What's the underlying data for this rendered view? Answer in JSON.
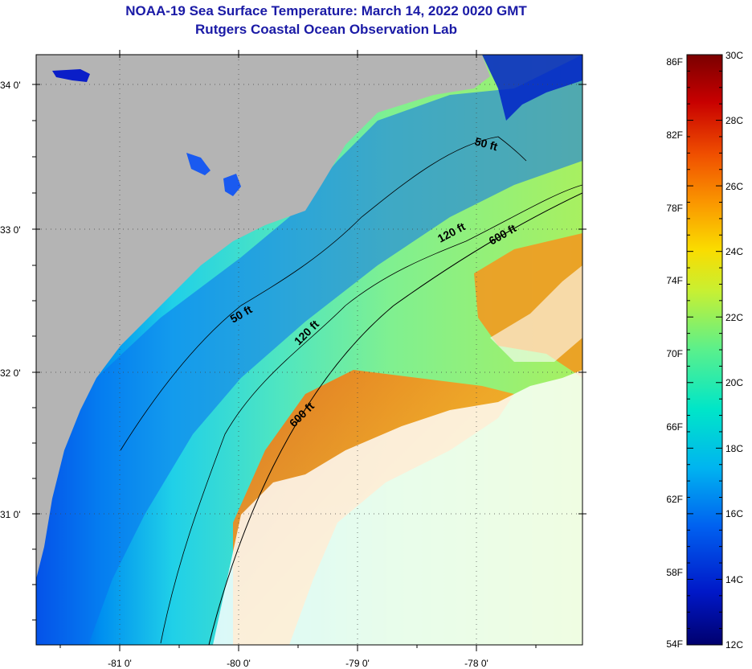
{
  "title": "NOAA-19 Sea Surface Temperature:  March 14, 2022 0020 GMT",
  "subtitle": "Rutgers Coastal Ocean Observation Lab",
  "axes": {
    "lat_labels": [
      "34 0'",
      "33 0'",
      "32 0'",
      "31 0'"
    ],
    "lon_labels": [
      "-81 0'",
      "-80 0'",
      "-79 0'",
      "-78 0'"
    ]
  },
  "contours": {
    "c50a": "50 ft",
    "c50b": "50 ft",
    "c120a": "120 ft",
    "c120b": "120 ft",
    "c600a": "600 ft",
    "c600b": "600 ft"
  },
  "colorbar": {
    "fahrenheit": [
      "86F",
      "82F",
      "78F",
      "74F",
      "70F",
      "66F",
      "62F",
      "58F",
      "54F"
    ],
    "celsius": [
      "30C",
      "28C",
      "26C",
      "24C",
      "22C",
      "20C",
      "18C",
      "16C",
      "14C",
      "12C"
    ],
    "range_c": [
      12,
      30
    ],
    "colors": [
      "#00006e",
      "#0018c8",
      "#0060f0",
      "#00b4f0",
      "#00e6c8",
      "#5af08c",
      "#c8f032",
      "#fadc00",
      "#fa9600",
      "#f05000",
      "#c80000",
      "#7a0000"
    ]
  },
  "colors": {
    "land": "#b4b4b4",
    "title": "#1a1aa6"
  }
}
